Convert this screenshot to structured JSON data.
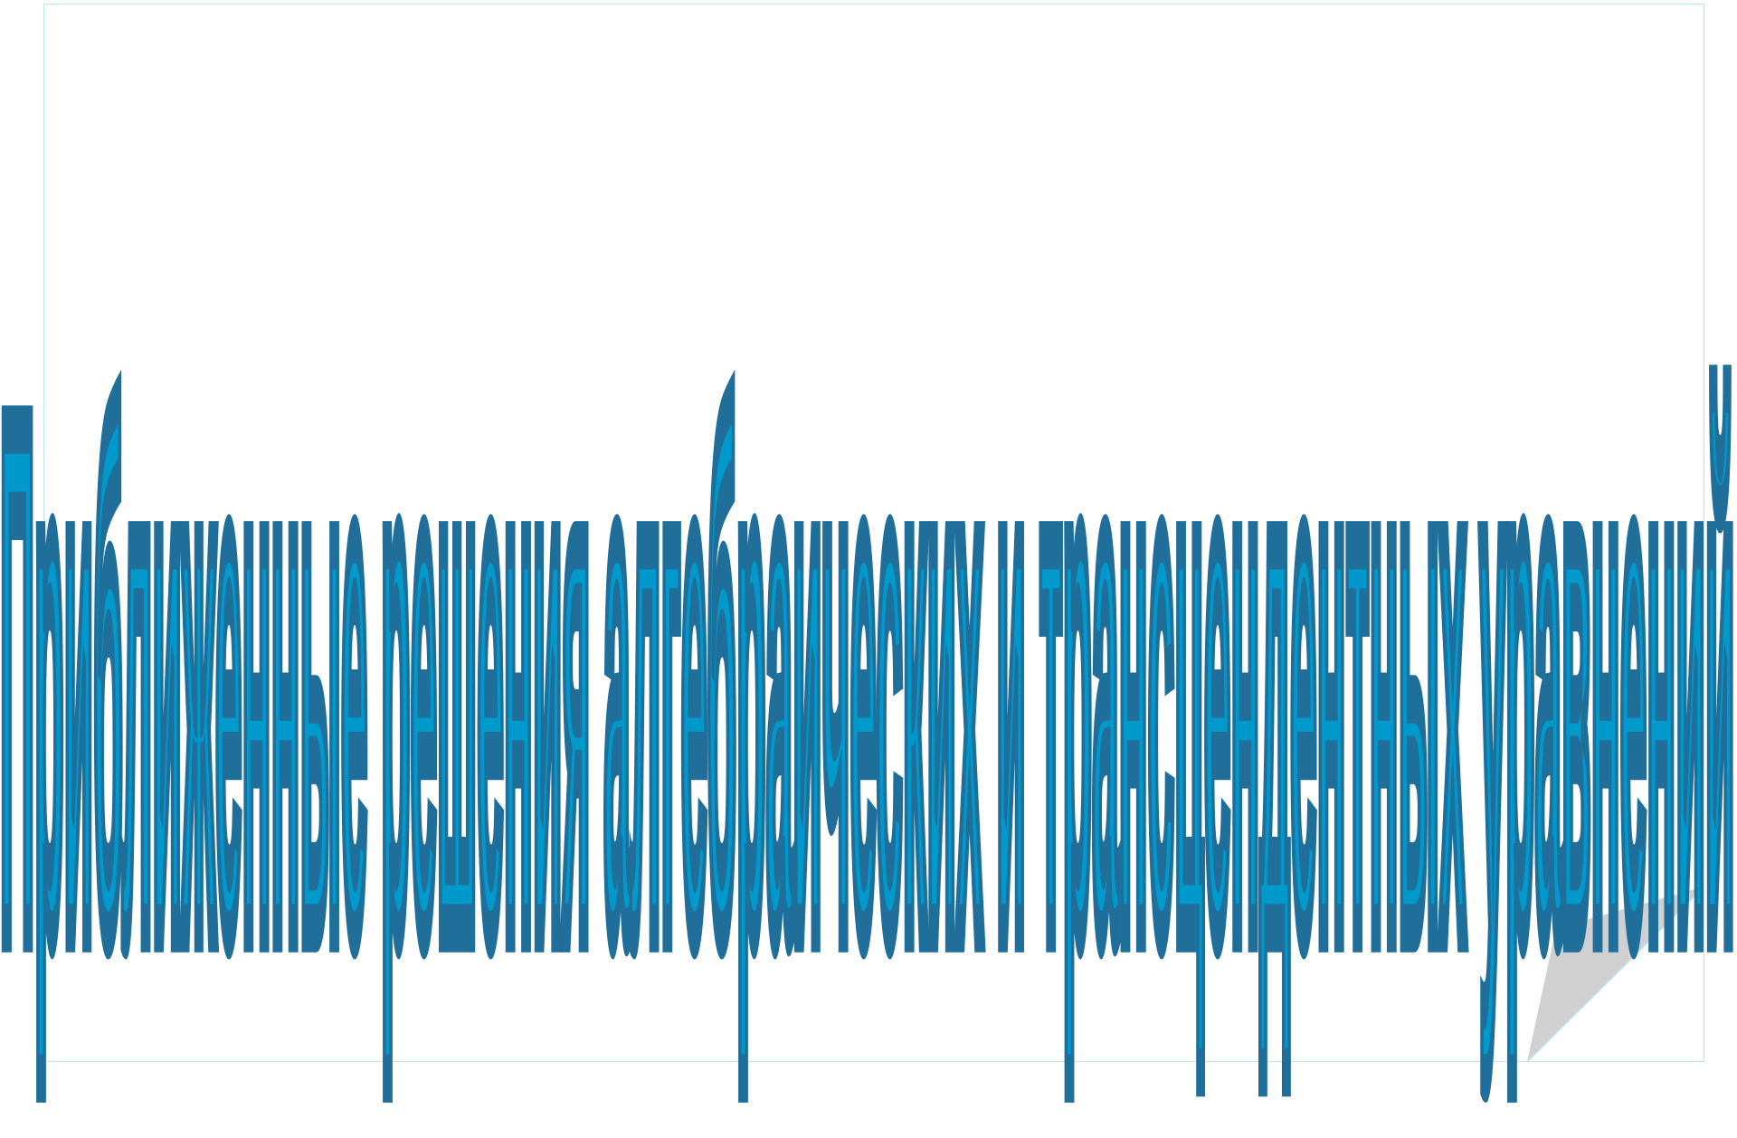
{
  "slide": {
    "title": "Приближенные решения алгебраических и трансцендентных уравнений"
  },
  "colors": {
    "wordart_fill": "#0099cc",
    "wordart_stroke": "#1f6f9a",
    "frame_border": "#bfe6f0",
    "curl_shadow": "#d0d0d0",
    "background": "#ffffff"
  }
}
